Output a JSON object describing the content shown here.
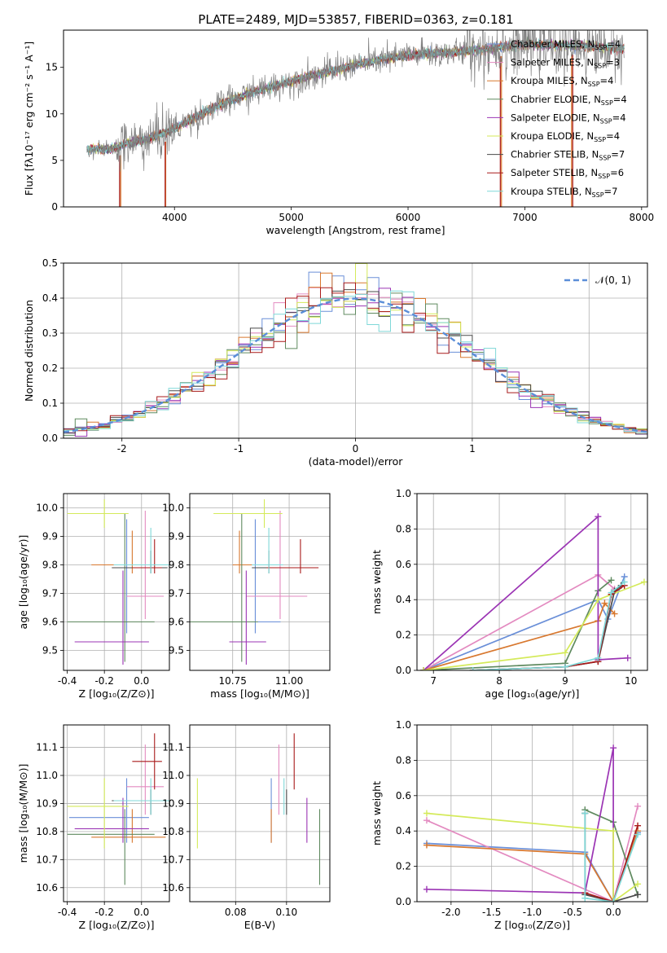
{
  "figure_title": "PLATE=2489, MJD=53857, FIBERID=0363, z=0.181",
  "colors": {
    "Chabrier MILES": "#6a8fd8",
    "Salpeter MILES": "#e38ac0",
    "Kroupa MILES": "#d8782f",
    "Chabrier ELODIE": "#5f8a5f",
    "Salpeter ELODIE": "#9b34b4",
    "Kroupa ELODIE": "#d4ea5a",
    "Chabrier STELIB": "#4a4a4a",
    "Salpeter STELIB": "#a81a1a",
    "Kroupa STELIB": "#7fd8d8",
    "data": "#808080",
    "normal": "#5b8ed8"
  },
  "chart_data": [
    {
      "id": "spectrum",
      "type": "line",
      "xlabel": "wavelength [Angstrom, rest frame]",
      "ylabel": "Flux [fλ10⁻¹⁷ erg cm⁻² s⁻¹ A⁻¹]",
      "xlim": [
        3050,
        8050
      ],
      "ylim": [
        0,
        19
      ],
      "xticks": [
        4000,
        5000,
        6000,
        7000,
        8000
      ],
      "yticks": [
        0,
        5,
        10,
        15
      ],
      "grid": false,
      "legend_position": "top-right",
      "legend": [
        {
          "model": "Chabrier MILES",
          "label": "Chabrier MILES, ",
          "n": "4"
        },
        {
          "model": "Salpeter MILES",
          "label": "Salpeter MILES, ",
          "n": "3"
        },
        {
          "model": "Kroupa MILES",
          "label": "Kroupa MILES, ",
          "n": "4"
        },
        {
          "model": "Chabrier ELODIE",
          "label": "Chabrier ELODIE, ",
          "n": "4"
        },
        {
          "model": "Salpeter ELODIE",
          "label": "Salpeter ELODIE, ",
          "n": "4"
        },
        {
          "model": "Kroupa ELODIE",
          "label": "Kroupa ELODIE, ",
          "n": "4"
        },
        {
          "model": "Chabrier STELIB",
          "label": "Chabrier STELIB, ",
          "n": "7"
        },
        {
          "model": "Salpeter STELIB",
          "label": "Salpeter STELIB, ",
          "n": "6"
        },
        {
          "model": "Kroupa STELIB",
          "label": "Kroupa STELIB, ",
          "n": "7"
        }
      ],
      "legend_n_prefix": "N",
      "legend_n_sub": "SSP",
      "legend_n_eq": "=",
      "continuum": [
        [
          3250,
          6.2
        ],
        [
          3450,
          6.2
        ],
        [
          3600,
          6.8
        ],
        [
          3800,
          7.4
        ],
        [
          4000,
          8.4
        ],
        [
          4200,
          9.8
        ],
        [
          4400,
          11.0
        ],
        [
          4600,
          12.0
        ],
        [
          4800,
          12.8
        ],
        [
          5000,
          13.5
        ],
        [
          5200,
          14.2
        ],
        [
          5400,
          14.8
        ],
        [
          5600,
          15.4
        ],
        [
          5800,
          15.9
        ],
        [
          6000,
          16.3
        ],
        [
          6200,
          16.5
        ],
        [
          6400,
          16.6
        ],
        [
          6600,
          16.9
        ],
        [
          6800,
          17.2
        ],
        [
          7000,
          17.5
        ],
        [
          7200,
          17.4
        ],
        [
          7400,
          17.4
        ],
        [
          7600,
          17.2
        ],
        [
          7800,
          17.0
        ]
      ],
      "model_edges": [
        {
          "model": "Kroupa MILES",
          "x": [
            3540,
            3925,
            6800,
            7400
          ]
        },
        {
          "model": "Salpeter STELIB",
          "x": [
            3530,
            3920,
            6790,
            7410
          ]
        }
      ]
    },
    {
      "id": "residuals",
      "type": "histogram",
      "xlabel": "(data-model)/error",
      "ylabel": "Normed distribution",
      "xlim": [
        -2.5,
        2.5
      ],
      "ylim": [
        0,
        0.5
      ],
      "xticks": [
        -2,
        -1,
        0,
        1,
        2
      ],
      "yticks": [
        0.0,
        0.1,
        0.2,
        0.3,
        0.4,
        0.5
      ],
      "grid": true,
      "legend_position": "top-right",
      "legend_label": "𝒩(0, 1)",
      "bin_width": 0.1
    },
    {
      "id": "age_vs_Z",
      "type": "errorbar",
      "xlabel": "Z [log₁₀(Z/Z⊙)]",
      "ylabel": "age  [log₁₀(age/yr)]",
      "xlim": [
        -0.42,
        0.15
      ],
      "ylim": [
        9.43,
        10.05
      ],
      "xticks": [
        -0.4,
        -0.2,
        0.0
      ],
      "yticks": [
        9.5,
        9.6,
        9.7,
        9.8,
        9.9,
        10.0
      ],
      "grid": true
    },
    {
      "id": "age_vs_mass",
      "type": "errorbar",
      "xlabel": "mass [log₁₀(M/M⊙)]",
      "ylabel": "",
      "xlim": [
        10.56,
        11.18
      ],
      "ylim": [
        9.43,
        10.05
      ],
      "xticks": [
        10.75,
        11.0
      ],
      "yticks": [
        9.5,
        9.6,
        9.7,
        9.8,
        9.9,
        10.0
      ],
      "grid": true
    },
    {
      "id": "mw_vs_age",
      "type": "line",
      "xlabel": "age  [log₁₀(age/yr)]",
      "ylabel": "mass weight",
      "xlim": [
        6.75,
        10.25
      ],
      "ylim": [
        0,
        1.0
      ],
      "xticks": [
        7,
        8,
        9,
        10
      ],
      "yticks": [
        0.0,
        0.2,
        0.4,
        0.6,
        0.8,
        1.0
      ],
      "grid": true
    },
    {
      "id": "mass_vs_Z",
      "type": "errorbar",
      "xlabel": "Z [log₁₀(Z/Z⊙)]",
      "ylabel": "mass [log₁₀(M/M⊙)]",
      "xlim": [
        -0.42,
        0.15
      ],
      "ylim": [
        10.55,
        11.18
      ],
      "xticks": [
        -0.4,
        -0.2,
        0.0
      ],
      "yticks": [
        10.6,
        10.7,
        10.8,
        10.9,
        11.0,
        11.1
      ],
      "grid": true
    },
    {
      "id": "mass_vs_EBV",
      "type": "errorbar",
      "xlabel": "E(B-V)",
      "ylabel": "",
      "xlim": [
        0.062,
        0.117
      ],
      "ylim": [
        10.55,
        11.18
      ],
      "xticks": [
        0.08,
        0.1
      ],
      "yticks": [
        10.6,
        10.7,
        10.8,
        10.9,
        11.0,
        11.1
      ],
      "grid": true
    },
    {
      "id": "mw_vs_Z",
      "type": "line",
      "xlabel": "Z [log₁₀(Z/Z⊙)]",
      "ylabel": "mass weight",
      "xlim": [
        -2.42,
        0.42
      ],
      "ylim": [
        0,
        1.0
      ],
      "xticks": [
        -2.0,
        -1.5,
        -1.0,
        -0.5,
        0.0
      ],
      "yticks": [
        0.0,
        0.2,
        0.4,
        0.6,
        0.8,
        1.0
      ],
      "grid": true
    }
  ],
  "models": [
    {
      "name": "Chabrier MILES",
      "age": 9.6,
      "age_err": [
        0.04,
        0.36
      ],
      "Z": -0.08,
      "Z_err": [
        0.31,
        0.12
      ],
      "mass": 10.85,
      "mass_err": [
        0.09,
        0.14
      ],
      "ebv": 0.094,
      "ebv_err": [
        0.1,
        0.1
      ],
      "ssp_age": [
        [
          6.85,
          0.0
        ],
        [
          9.5,
          0.4
        ],
        [
          9.65,
          0.29
        ],
        [
          9.9,
          0.53
        ]
      ],
      "ssp_Z": [
        [
          -2.3,
          0.33
        ],
        [
          -0.35,
          0.28
        ],
        [
          0.0,
          0.0
        ],
        [
          0.3,
          0.39
        ]
      ]
    },
    {
      "name": "Salpeter MILES",
      "age": 9.69,
      "age_err": [
        0.08,
        0.3
      ],
      "Z": 0.02,
      "Z_err": [
        0.1,
        0.1
      ],
      "mass": 10.96,
      "mass_err": [
        0.1,
        0.15
      ],
      "ebv": 0.097,
      "ebv_err": [
        0.09,
        0.09
      ],
      "ssp_age": [
        [
          6.85,
          0.0
        ],
        [
          9.5,
          0.54
        ],
        [
          9.75,
          0.46
        ]
      ],
      "ssp_Z": [
        [
          -2.3,
          0.46
        ],
        [
          0.0,
          0.0
        ],
        [
          0.3,
          0.54
        ]
      ]
    },
    {
      "name": "Kroupa MILES",
      "age": 9.8,
      "age_err": [
        0.03,
        0.12
      ],
      "Z": -0.05,
      "Z_err": [
        0.22,
        0.18
      ],
      "mass": 10.78,
      "mass_err": [
        0.02,
        0.1
      ],
      "ebv": 0.094,
      "ebv_err": [
        0.09,
        0.09
      ],
      "ssp_age": [
        [
          6.85,
          0.0
        ],
        [
          9.5,
          0.28
        ],
        [
          9.6,
          0.38
        ],
        [
          9.75,
          0.32
        ]
      ],
      "ssp_Z": [
        [
          -2.3,
          0.32
        ],
        [
          -0.35,
          0.27
        ],
        [
          0.0,
          0.0
        ],
        [
          0.3,
          0.4
        ]
      ]
    },
    {
      "name": "Chabrier ELODIE",
      "age": 9.6,
      "age_err": [
        0.14,
        0.38
      ],
      "Z": -0.09,
      "Z_err": [
        0.31,
        0.16
      ],
      "mass": 10.79,
      "mass_err": [
        0.18,
        0.09
      ],
      "ebv": 0.113,
      "ebv_err": [
        0.12,
        0.12
      ],
      "ssp_age": [
        [
          6.85,
          0.0
        ],
        [
          9.0,
          0.04
        ],
        [
          9.5,
          0.45
        ],
        [
          9.7,
          0.51
        ]
      ],
      "ssp_Z": [
        [
          -0.35,
          0.52
        ],
        [
          0.0,
          0.45
        ],
        [
          0.3,
          0.04
        ]
      ]
    },
    {
      "name": "Salpeter ELODIE",
      "age": 9.53,
      "age_err": [
        0.08,
        0.25
      ],
      "Z": -0.1,
      "Z_err": [
        0.26,
        0.14
      ],
      "mass": 10.81,
      "mass_err": [
        0.05,
        0.11
      ],
      "ebv": 0.108,
      "ebv_err": [
        0.12,
        0.08
      ],
      "ssp_age": [
        [
          6.85,
          0.0
        ],
        [
          9.5,
          0.87
        ],
        [
          9.5,
          0.06
        ],
        [
          9.95,
          0.07
        ]
      ],
      "ssp_Z": [
        [
          -2.3,
          0.07
        ],
        [
          -0.35,
          0.05
        ],
        [
          0.0,
          0.87
        ],
        [
          0.0,
          0.0
        ]
      ]
    },
    {
      "name": "Kroupa ELODIE",
      "age": 9.98,
      "age_err": [
        0.05,
        0.05
      ],
      "Z": -0.2,
      "Z_err": [
        0.2,
        0.13
      ],
      "mass": 10.89,
      "mass_err": [
        0.15,
        0.1
      ],
      "ebv": 0.065,
      "ebv_err": [
        0.18,
        0.13
      ],
      "ssp_age": [
        [
          6.85,
          0.0
        ],
        [
          9.0,
          0.1
        ],
        [
          9.5,
          0.4
        ],
        [
          10.2,
          0.5
        ]
      ],
      "ssp_Z": [
        [
          -2.3,
          0.5
        ],
        [
          0.0,
          0.4
        ],
        [
          0.0,
          0.0
        ],
        [
          0.3,
          0.1
        ]
      ]
    },
    {
      "name": "Chabrier STELIB",
      "age": 9.79,
      "age_err": [
        0.02,
        0.06
      ],
      "Z": 0.05,
      "Z_err": [
        0.21,
        0.09
      ],
      "mass": 10.91,
      "mass_err": [
        0.05,
        0.04
      ],
      "ebv": 0.1,
      "ebv_err": [
        0.08,
        0.06
      ],
      "ssp_age": [
        [
          7.6,
          0.0
        ],
        [
          9.0,
          0.02
        ],
        [
          9.5,
          0.05
        ],
        [
          9.75,
          0.45
        ],
        [
          9.85,
          0.48
        ]
      ],
      "ssp_Z": [
        [
          -0.35,
          0.5
        ],
        [
          -0.35,
          0.04
        ],
        [
          0.0,
          0.0
        ],
        [
          0.3,
          0.04
        ]
      ]
    },
    {
      "name": "Salpeter STELIB",
      "age": 9.79,
      "age_err": [
        0.02,
        0.1
      ],
      "Z": 0.07,
      "Z_err": [
        0.12,
        0.04
      ],
      "mass": 11.05,
      "mass_err": [
        0.1,
        0.1
      ],
      "ebv": 0.103,
      "ebv_err": [
        0.07,
        0.1
      ],
      "ssp_age": [
        [
          7.6,
          0.0
        ],
        [
          9.0,
          0.02
        ],
        [
          9.5,
          0.05
        ],
        [
          9.7,
          0.43
        ],
        [
          9.9,
          0.48
        ]
      ],
      "ssp_Z": [
        [
          -0.35,
          0.05
        ],
        [
          0.0,
          0.0
        ],
        [
          0.3,
          0.43
        ]
      ]
    },
    {
      "name": "Kroupa STELIB",
      "age": 9.8,
      "age_err": [
        0.03,
        0.13
      ],
      "Z": 0.05,
      "Z_err": [
        0.2,
        0.12
      ],
      "mass": 10.91,
      "mass_err": [
        0.05,
        0.08
      ],
      "ebv": 0.099,
      "ebv_err": [
        0.08,
        0.07
      ],
      "ssp_age": [
        [
          7.6,
          0.0
        ],
        [
          9.0,
          0.02
        ],
        [
          9.5,
          0.07
        ],
        [
          9.7,
          0.44
        ],
        [
          9.9,
          0.5
        ]
      ],
      "ssp_Z": [
        [
          -0.35,
          0.5
        ],
        [
          -0.35,
          0.02
        ],
        [
          0.0,
          0.0
        ],
        [
          0.3,
          0.38
        ]
      ]
    }
  ]
}
